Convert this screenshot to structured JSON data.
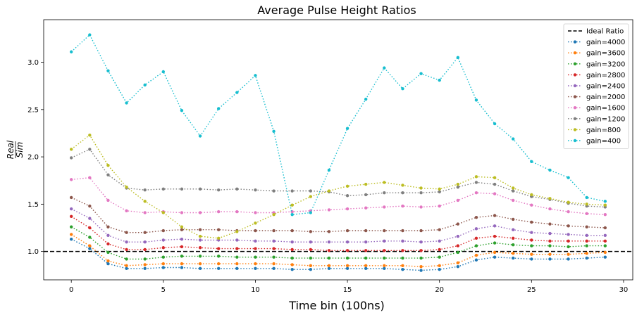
{
  "chart_data": {
    "type": "line",
    "title": "Average Pulse Height Ratios",
    "xlabel": "Time bin (100ns)",
    "ylabel": {
      "numerator": "Real",
      "denominator": "Sim"
    },
    "xlim": [
      -1.5,
      30.5
    ],
    "ylim": [
      0.7,
      3.45
    ],
    "xticks": [
      0,
      5,
      10,
      15,
      20,
      25,
      30
    ],
    "yticks": [
      1.0,
      1.5,
      2.0,
      2.5,
      3.0
    ],
    "xtick_labels": [
      "0",
      "5",
      "10",
      "15",
      "20",
      "25",
      "30"
    ],
    "ytick_labels": [
      "1.0",
      "1.5",
      "2.0",
      "2.5",
      "3.0"
    ],
    "grid": false,
    "legend_position": "top-right",
    "reference_line": {
      "name": "Ideal Ratio",
      "y": 1.0,
      "color": "#000000",
      "style": "dashed"
    },
    "x": [
      0,
      1,
      2,
      3,
      4,
      5,
      6,
      7,
      8,
      9,
      10,
      11,
      12,
      13,
      14,
      15,
      16,
      17,
      18,
      19,
      20,
      21,
      22,
      23,
      24,
      25,
      26,
      27,
      28,
      29
    ],
    "series": [
      {
        "name": "gain=4000",
        "color": "#1f77b4",
        "values": [
          1.13,
          1.03,
          0.87,
          0.82,
          0.82,
          0.83,
          0.83,
          0.82,
          0.82,
          0.82,
          0.82,
          0.82,
          0.81,
          0.81,
          0.82,
          0.82,
          0.82,
          0.82,
          0.81,
          0.8,
          0.81,
          0.84,
          0.91,
          0.94,
          0.93,
          0.92,
          0.92,
          0.92,
          0.93,
          0.94
        ]
      },
      {
        "name": "gain=3600",
        "color": "#ff7f0e",
        "values": [
          1.18,
          1.06,
          0.9,
          0.85,
          0.86,
          0.87,
          0.87,
          0.87,
          0.87,
          0.87,
          0.87,
          0.87,
          0.86,
          0.85,
          0.85,
          0.85,
          0.85,
          0.85,
          0.85,
          0.84,
          0.85,
          0.88,
          0.96,
          0.99,
          0.98,
          0.97,
          0.97,
          0.97,
          0.98,
          0.99
        ]
      },
      {
        "name": "gain=3200",
        "color": "#2ca02c",
        "values": [
          1.26,
          1.15,
          0.99,
          0.92,
          0.92,
          0.94,
          0.95,
          0.95,
          0.95,
          0.94,
          0.94,
          0.94,
          0.93,
          0.93,
          0.93,
          0.93,
          0.93,
          0.93,
          0.93,
          0.93,
          0.94,
          0.99,
          1.06,
          1.09,
          1.07,
          1.06,
          1.06,
          1.05,
          1.06,
          1.06
        ]
      },
      {
        "name": "gain=2800",
        "color": "#d62728",
        "values": [
          1.37,
          1.25,
          1.08,
          1.02,
          1.02,
          1.04,
          1.05,
          1.04,
          1.03,
          1.03,
          1.03,
          1.03,
          1.02,
          1.02,
          1.01,
          1.01,
          1.01,
          1.01,
          1.01,
          1.01,
          1.02,
          1.06,
          1.14,
          1.16,
          1.14,
          1.12,
          1.11,
          1.11,
          1.11,
          1.11
        ]
      },
      {
        "name": "gain=2400",
        "color": "#9467bd",
        "values": [
          1.45,
          1.35,
          1.17,
          1.1,
          1.1,
          1.12,
          1.13,
          1.12,
          1.12,
          1.12,
          1.11,
          1.11,
          1.1,
          1.1,
          1.1,
          1.1,
          1.1,
          1.11,
          1.11,
          1.1,
          1.11,
          1.16,
          1.24,
          1.27,
          1.23,
          1.2,
          1.19,
          1.18,
          1.17,
          1.17
        ]
      },
      {
        "name": "gain=2000",
        "color": "#8c564b",
        "values": [
          1.57,
          1.48,
          1.26,
          1.2,
          1.2,
          1.22,
          1.23,
          1.23,
          1.23,
          1.22,
          1.22,
          1.22,
          1.22,
          1.21,
          1.21,
          1.22,
          1.22,
          1.22,
          1.22,
          1.22,
          1.23,
          1.29,
          1.36,
          1.38,
          1.34,
          1.31,
          1.29,
          1.27,
          1.26,
          1.25
        ]
      },
      {
        "name": "gain=1600",
        "color": "#e377c2",
        "values": [
          1.76,
          1.78,
          1.54,
          1.43,
          1.41,
          1.42,
          1.41,
          1.41,
          1.42,
          1.42,
          1.41,
          1.41,
          1.42,
          1.43,
          1.44,
          1.45,
          1.46,
          1.47,
          1.48,
          1.47,
          1.48,
          1.54,
          1.62,
          1.61,
          1.54,
          1.49,
          1.45,
          1.42,
          1.4,
          1.39
        ]
      },
      {
        "name": "gain=1200",
        "color": "#7f7f7f",
        "values": [
          1.99,
          2.08,
          1.81,
          1.67,
          1.65,
          1.66,
          1.66,
          1.66,
          1.65,
          1.66,
          1.65,
          1.64,
          1.64,
          1.64,
          1.63,
          1.59,
          1.6,
          1.62,
          1.62,
          1.62,
          1.63,
          1.68,
          1.73,
          1.71,
          1.64,
          1.58,
          1.55,
          1.51,
          1.48,
          1.47
        ]
      },
      {
        "name": "gain=800",
        "color": "#bcbd22",
        "values": [
          2.08,
          2.23,
          1.91,
          1.68,
          1.53,
          1.41,
          1.26,
          1.16,
          1.14,
          1.21,
          1.3,
          1.39,
          1.49,
          1.58,
          1.64,
          1.69,
          1.71,
          1.73,
          1.7,
          1.67,
          1.66,
          1.71,
          1.79,
          1.78,
          1.67,
          1.6,
          1.56,
          1.52,
          1.5,
          1.49
        ]
      },
      {
        "name": "gain=400",
        "color": "#17becf",
        "values": [
          3.11,
          3.29,
          2.91,
          2.57,
          2.76,
          2.9,
          2.49,
          2.22,
          2.51,
          2.68,
          2.86,
          2.27,
          1.39,
          1.41,
          1.86,
          2.3,
          2.61,
          2.94,
          2.72,
          2.88,
          2.81,
          3.05,
          2.6,
          2.35,
          2.19,
          1.95,
          1.86,
          1.78,
          1.57,
          1.53
        ]
      }
    ]
  }
}
